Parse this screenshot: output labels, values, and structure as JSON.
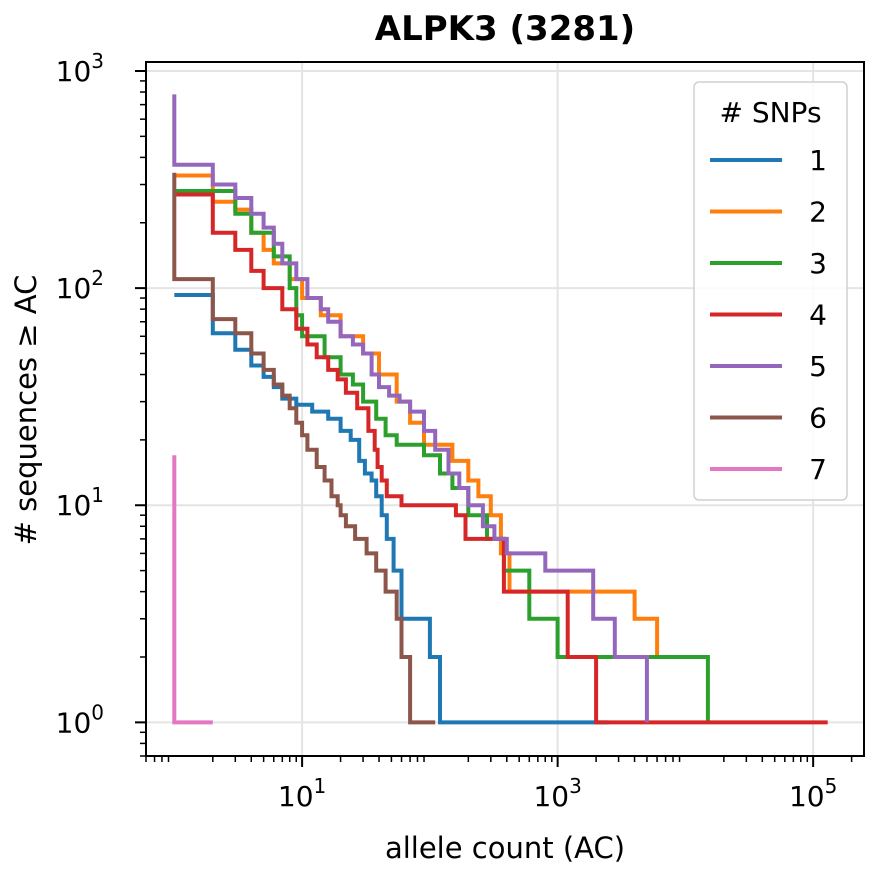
{
  "chart_data": {
    "type": "line",
    "title": "ALPK3 (3281)",
    "xlabel": "allele count (AC)",
    "ylabel": "# sequences ≥ AC",
    "xscale": "log",
    "yscale": "log",
    "xlim": [
      0.6,
      250000
    ],
    "ylim": [
      0.7,
      1100
    ],
    "x_ticks": [
      {
        "value": 10,
        "base": "10",
        "exp": "1"
      },
      {
        "value": 1000,
        "base": "10",
        "exp": "3"
      },
      {
        "value": 100000,
        "base": "10",
        "exp": "5"
      }
    ],
    "y_ticks": [
      {
        "value": 1,
        "base": "10",
        "exp": "0"
      },
      {
        "value": 10,
        "base": "10",
        "exp": "1"
      },
      {
        "value": 100,
        "base": "10",
        "exp": "2"
      },
      {
        "value": 1000,
        "base": "10",
        "exp": "3"
      }
    ],
    "grid": true,
    "legend": {
      "title": "# SNPs",
      "placement": "top-right"
    },
    "series": [
      {
        "name": "1",
        "color": "#1f77b4",
        "points": [
          [
            1,
            93
          ],
          [
            2,
            93
          ],
          [
            2,
            62
          ],
          [
            3,
            62
          ],
          [
            3,
            52
          ],
          [
            4,
            52
          ],
          [
            4,
            44
          ],
          [
            5,
            44
          ],
          [
            5,
            39
          ],
          [
            6,
            39
          ],
          [
            6,
            35
          ],
          [
            7,
            35
          ],
          [
            7,
            31
          ],
          [
            9,
            31
          ],
          [
            9,
            29
          ],
          [
            12,
            29
          ],
          [
            12,
            27
          ],
          [
            16,
            27
          ],
          [
            16,
            25
          ],
          [
            20,
            25
          ],
          [
            20,
            22
          ],
          [
            24,
            22
          ],
          [
            24,
            20
          ],
          [
            28,
            20
          ],
          [
            28,
            16
          ],
          [
            31,
            16
          ],
          [
            31,
            14
          ],
          [
            35,
            14
          ],
          [
            35,
            13
          ],
          [
            38,
            13
          ],
          [
            38,
            11
          ],
          [
            42,
            11
          ],
          [
            42,
            9
          ],
          [
            46,
            9
          ],
          [
            46,
            7
          ],
          [
            52,
            7
          ],
          [
            52,
            5
          ],
          [
            60,
            5
          ],
          [
            60,
            3
          ],
          [
            100,
            3
          ],
          [
            100,
            2
          ],
          [
            120,
            2
          ],
          [
            120,
            1
          ],
          [
            2500,
            1
          ]
        ]
      },
      {
        "name": "2",
        "color": "#ff7f0e",
        "points": [
          [
            1,
            330
          ],
          [
            2,
            330
          ],
          [
            2,
            250
          ],
          [
            3,
            250
          ],
          [
            3,
            230
          ],
          [
            4,
            230
          ],
          [
            4,
            180
          ],
          [
            5,
            180
          ],
          [
            5,
            150
          ],
          [
            6,
            150
          ],
          [
            6,
            130
          ],
          [
            8,
            130
          ],
          [
            8,
            110
          ],
          [
            10,
            110
          ],
          [
            10,
            90
          ],
          [
            14,
            90
          ],
          [
            14,
            75
          ],
          [
            20,
            75
          ],
          [
            20,
            60
          ],
          [
            30,
            60
          ],
          [
            30,
            50
          ],
          [
            40,
            50
          ],
          [
            40,
            40
          ],
          [
            55,
            40
          ],
          [
            55,
            30
          ],
          [
            70,
            30
          ],
          [
            70,
            24
          ],
          [
            90,
            24
          ],
          [
            90,
            19
          ],
          [
            150,
            19
          ],
          [
            150,
            16
          ],
          [
            200,
            16
          ],
          [
            200,
            13
          ],
          [
            240,
            13
          ],
          [
            240,
            11
          ],
          [
            300,
            11
          ],
          [
            300,
            9
          ],
          [
            360,
            9
          ],
          [
            360,
            6
          ],
          [
            420,
            6
          ],
          [
            420,
            4
          ],
          [
            4000,
            4
          ],
          [
            4000,
            3
          ],
          [
            6000,
            3
          ],
          [
            6000,
            2
          ],
          [
            12000,
            2
          ]
        ]
      },
      {
        "name": "3",
        "color": "#2ca02c",
        "points": [
          [
            1,
            280
          ],
          [
            3,
            280
          ],
          [
            3,
            220
          ],
          [
            4,
            220
          ],
          [
            4,
            180
          ],
          [
            6,
            180
          ],
          [
            6,
            140
          ],
          [
            8,
            140
          ],
          [
            8,
            100
          ],
          [
            9,
            100
          ],
          [
            9,
            75
          ],
          [
            10,
            75
          ],
          [
            10,
            60
          ],
          [
            15,
            60
          ],
          [
            15,
            48
          ],
          [
            20,
            48
          ],
          [
            20,
            40
          ],
          [
            25,
            40
          ],
          [
            25,
            36
          ],
          [
            30,
            36
          ],
          [
            30,
            30
          ],
          [
            38,
            30
          ],
          [
            38,
            25
          ],
          [
            45,
            25
          ],
          [
            45,
            21
          ],
          [
            55,
            21
          ],
          [
            55,
            19
          ],
          [
            90,
            19
          ],
          [
            90,
            17
          ],
          [
            120,
            17
          ],
          [
            120,
            14
          ],
          [
            150,
            14
          ],
          [
            150,
            12
          ],
          [
            200,
            12
          ],
          [
            200,
            9
          ],
          [
            280,
            9
          ],
          [
            280,
            7
          ],
          [
            380,
            7
          ],
          [
            380,
            5
          ],
          [
            600,
            5
          ],
          [
            600,
            3
          ],
          [
            1000,
            3
          ],
          [
            1000,
            2
          ],
          [
            15000,
            2
          ],
          [
            15000,
            1
          ]
        ]
      },
      {
        "name": "4",
        "color": "#d62728",
        "points": [
          [
            1,
            270
          ],
          [
            2,
            270
          ],
          [
            2,
            180
          ],
          [
            3,
            180
          ],
          [
            3,
            150
          ],
          [
            4,
            150
          ],
          [
            4,
            120
          ],
          [
            5,
            120
          ],
          [
            5,
            100
          ],
          [
            7,
            100
          ],
          [
            7,
            80
          ],
          [
            9,
            80
          ],
          [
            9,
            65
          ],
          [
            11,
            65
          ],
          [
            11,
            55
          ],
          [
            13,
            55
          ],
          [
            13,
            48
          ],
          [
            16,
            48
          ],
          [
            16,
            42
          ],
          [
            19,
            42
          ],
          [
            19,
            38
          ],
          [
            22,
            38
          ],
          [
            22,
            33
          ],
          [
            27,
            33
          ],
          [
            27,
            28
          ],
          [
            33,
            28
          ],
          [
            33,
            22
          ],
          [
            37,
            22
          ],
          [
            37,
            18
          ],
          [
            39,
            18
          ],
          [
            39,
            15
          ],
          [
            42,
            15
          ],
          [
            42,
            13
          ],
          [
            46,
            13
          ],
          [
            46,
            11
          ],
          [
            60,
            11
          ],
          [
            60,
            10
          ],
          [
            160,
            10
          ],
          [
            160,
            9
          ],
          [
            190,
            9
          ],
          [
            190,
            7
          ],
          [
            380,
            7
          ],
          [
            380,
            4
          ],
          [
            1200,
            4
          ],
          [
            1200,
            2
          ],
          [
            2000,
            2
          ],
          [
            2000,
            1
          ],
          [
            130000,
            1
          ]
        ]
      },
      {
        "name": "5",
        "color": "#9467bd",
        "points": [
          [
            1,
            780
          ],
          [
            1,
            370
          ],
          [
            2,
            370
          ],
          [
            2,
            300
          ],
          [
            3,
            300
          ],
          [
            3,
            260
          ],
          [
            4,
            260
          ],
          [
            4,
            220
          ],
          [
            5,
            220
          ],
          [
            5,
            190
          ],
          [
            6,
            190
          ],
          [
            6,
            160
          ],
          [
            7,
            160
          ],
          [
            7,
            130
          ],
          [
            9,
            130
          ],
          [
            9,
            110
          ],
          [
            11,
            110
          ],
          [
            11,
            90
          ],
          [
            14,
            90
          ],
          [
            14,
            80
          ],
          [
            16,
            80
          ],
          [
            16,
            70
          ],
          [
            20,
            70
          ],
          [
            20,
            60
          ],
          [
            25,
            60
          ],
          [
            25,
            55
          ],
          [
            30,
            55
          ],
          [
            30,
            50
          ],
          [
            35,
            50
          ],
          [
            35,
            40
          ],
          [
            40,
            40
          ],
          [
            40,
            35
          ],
          [
            48,
            35
          ],
          [
            48,
            32
          ],
          [
            58,
            32
          ],
          [
            58,
            30
          ],
          [
            70,
            30
          ],
          [
            70,
            27
          ],
          [
            90,
            27
          ],
          [
            90,
            22
          ],
          [
            110,
            22
          ],
          [
            110,
            18
          ],
          [
            140,
            18
          ],
          [
            140,
            14
          ],
          [
            170,
            14
          ],
          [
            170,
            12
          ],
          [
            200,
            12
          ],
          [
            200,
            10
          ],
          [
            260,
            10
          ],
          [
            260,
            8
          ],
          [
            320,
            8
          ],
          [
            320,
            7
          ],
          [
            400,
            7
          ],
          [
            400,
            6
          ],
          [
            800,
            6
          ],
          [
            800,
            5
          ],
          [
            1900,
            5
          ],
          [
            1900,
            3
          ],
          [
            2800,
            3
          ],
          [
            2800,
            2
          ],
          [
            5000,
            2
          ],
          [
            5000,
            1
          ]
        ]
      },
      {
        "name": "6",
        "color": "#8c564b",
        "points": [
          [
            1,
            340
          ],
          [
            1,
            110
          ],
          [
            2,
            110
          ],
          [
            2,
            72
          ],
          [
            3,
            72
          ],
          [
            3,
            62
          ],
          [
            4,
            62
          ],
          [
            4,
            50
          ],
          [
            5,
            50
          ],
          [
            5,
            42
          ],
          [
            6,
            42
          ],
          [
            6,
            36
          ],
          [
            7,
            36
          ],
          [
            7,
            32
          ],
          [
            8,
            32
          ],
          [
            8,
            28
          ],
          [
            9,
            28
          ],
          [
            9,
            24
          ],
          [
            10,
            24
          ],
          [
            10,
            21
          ],
          [
            11,
            21
          ],
          [
            11,
            18
          ],
          [
            13,
            18
          ],
          [
            13,
            15
          ],
          [
            15,
            15
          ],
          [
            15,
            13
          ],
          [
            17,
            13
          ],
          [
            17,
            11
          ],
          [
            19,
            11
          ],
          [
            19,
            10
          ],
          [
            20,
            10
          ],
          [
            20,
            9
          ],
          [
            22,
            9
          ],
          [
            22,
            8
          ],
          [
            26,
            8
          ],
          [
            26,
            7
          ],
          [
            32,
            7
          ],
          [
            32,
            6
          ],
          [
            38,
            6
          ],
          [
            38,
            5
          ],
          [
            45,
            5
          ],
          [
            45,
            4
          ],
          [
            55,
            4
          ],
          [
            55,
            3
          ],
          [
            60,
            3
          ],
          [
            60,
            2
          ],
          [
            70,
            2
          ],
          [
            70,
            1
          ],
          [
            110,
            1
          ]
        ]
      },
      {
        "name": "7",
        "color": "#e377c2",
        "points": [
          [
            1,
            17
          ],
          [
            1,
            1
          ],
          [
            2,
            1
          ]
        ]
      }
    ]
  }
}
